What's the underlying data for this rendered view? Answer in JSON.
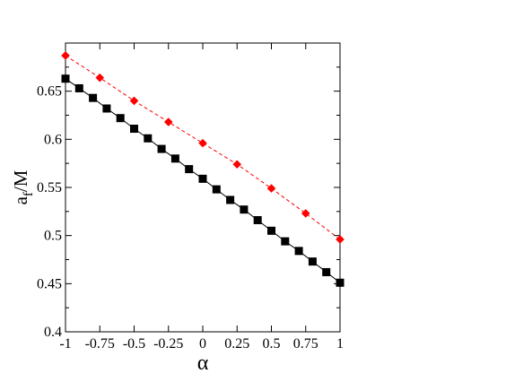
{
  "chart_data": {
    "type": "line",
    "title": "",
    "xlabel": "α",
    "ylabel_main": "a",
    "ylabel_sub": "f",
    "ylabel_rest": "/M",
    "xlim": [
      -1,
      1
    ],
    "ylim": [
      0.4,
      0.7
    ],
    "xticks": [
      -1,
      -0.75,
      -0.5,
      -0.25,
      0,
      0.25,
      0.5,
      0.75,
      1
    ],
    "xtick_labels": [
      "-1",
      "-0.75",
      "-0.5",
      "-0.25",
      "0",
      "0.25",
      "0.5",
      "0.75",
      "1"
    ],
    "yticks": [
      0.4,
      0.45,
      0.5,
      0.55,
      0.6,
      0.65
    ],
    "ytick_labels": [
      "0.4",
      "0.45",
      "0.5",
      "0.55",
      "0.6",
      "0.65"
    ],
    "grid": false,
    "legend": "none",
    "series": [
      {
        "marker": "square",
        "line": "solid",
        "color": "#000000",
        "x": [
          -1,
          -0.9,
          -0.8,
          -0.7,
          -0.6,
          -0.5,
          -0.4,
          -0.3,
          -0.2,
          -0.1,
          0,
          0.1,
          0.2,
          0.3,
          0.4,
          0.5,
          0.6,
          0.7,
          0.8,
          0.9,
          1
        ],
        "y": [
          0.663,
          0.653,
          0.643,
          0.632,
          0.622,
          0.611,
          0.601,
          0.59,
          0.58,
          0.569,
          0.559,
          0.548,
          0.537,
          0.527,
          0.516,
          0.505,
          0.494,
          0.484,
          0.473,
          0.462,
          0.451
        ]
      },
      {
        "marker": "diamond",
        "line": "dashed",
        "color": "#ff0000",
        "x": [
          -1,
          -0.75,
          -0.5,
          -0.25,
          0,
          0.25,
          0.5,
          0.75,
          1
        ],
        "y": [
          0.687,
          0.664,
          0.64,
          0.618,
          0.596,
          0.574,
          0.549,
          0.523,
          0.496
        ]
      }
    ]
  }
}
